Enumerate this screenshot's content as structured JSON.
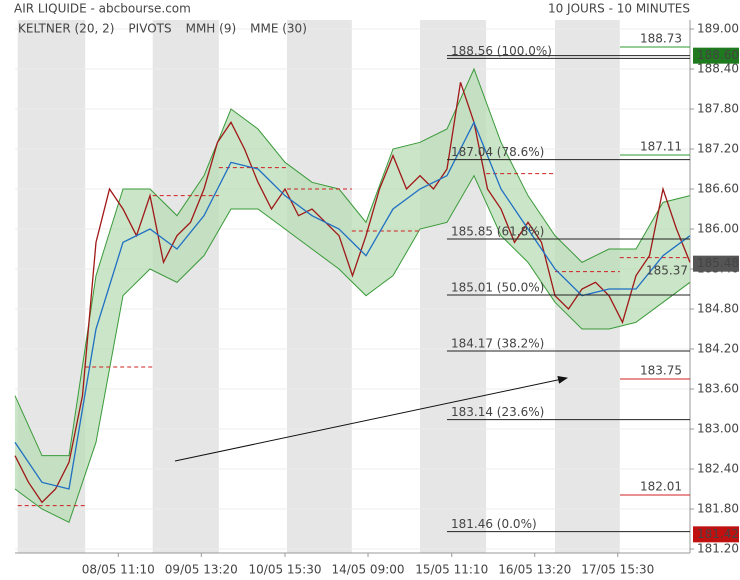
{
  "chart_data": {
    "type": "line",
    "title": "AIR LIQUIDE - abcbourse.com",
    "subtitle": "10 JOURS - 10 MINUTES",
    "legend": [
      "KELTNER (20, 2)",
      "PIVOTS",
      "MMH (9)",
      "MME (30)"
    ],
    "legend_colors": [
      "#3a9a3a",
      "#333333",
      "#a01818",
      "#1f6fc4"
    ],
    "xlim": [
      0,
      100
    ],
    "ylim": [
      181.2,
      189.0
    ],
    "grid": true,
    "yticks": [
      {
        "value": 189.0,
        "label": "189.00"
      },
      {
        "value": 188.4,
        "label": "188.40"
      },
      {
        "value": 187.8,
        "label": "187.80"
      },
      {
        "value": 187.2,
        "label": "187.20"
      },
      {
        "value": 186.6,
        "label": "186.60"
      },
      {
        "value": 186.0,
        "label": "186.00"
      },
      {
        "value": 185.4,
        "label": "185.40"
      },
      {
        "value": 184.8,
        "label": "184.80"
      },
      {
        "value": 184.2,
        "label": "184.20"
      },
      {
        "value": 183.6,
        "label": "183.60"
      },
      {
        "value": 183.0,
        "label": "183.00"
      },
      {
        "value": 182.4,
        "label": "182.40"
      },
      {
        "value": 181.8,
        "label": "181.80"
      },
      {
        "value": 181.2,
        "label": "181.20"
      }
    ],
    "xticks": [
      {
        "value": 15.3,
        "label": "08/05 11:10"
      },
      {
        "value": 27.6,
        "label": "09/05 13:20"
      },
      {
        "value": 40,
        "label": "10/05 15:30"
      },
      {
        "value": 52.3,
        "label": "14/05 09:00"
      },
      {
        "value": 64.7,
        "label": "15/05 11:10"
      },
      {
        "value": 77,
        "label": "16/05 13:20"
      },
      {
        "value": 89.3,
        "label": "17/05 15:30"
      }
    ],
    "shaded_x": [
      [
        0.4,
        10.4
      ],
      [
        20.4,
        30.2
      ],
      [
        40.3,
        49.9
      ],
      [
        60,
        69.8
      ],
      [
        80,
        89.6
      ]
    ],
    "shade_color": "#e6e6e6",
    "keltner": {
      "color": "#3a9a3a",
      "fill": "#b8dcb4",
      "x": [
        0,
        4,
        8,
        12,
        16,
        20,
        24,
        28,
        32,
        36,
        40,
        44,
        48,
        52,
        56,
        60,
        64,
        68,
        72,
        76,
        80,
        84,
        88,
        92,
        96,
        100
      ],
      "upper": [
        183.5,
        182.6,
        182.6,
        185.3,
        186.6,
        186.6,
        186.2,
        186.8,
        187.8,
        187.5,
        187.0,
        186.7,
        186.6,
        186.1,
        187.2,
        187.3,
        187.5,
        188.4,
        187.3,
        186.5,
        185.9,
        185.5,
        185.7,
        185.7,
        186.4,
        186.5
      ],
      "lower": [
        182.1,
        181.8,
        181.6,
        182.8,
        185.0,
        185.4,
        185.2,
        185.6,
        186.3,
        186.3,
        186.0,
        185.7,
        185.4,
        185.0,
        185.3,
        186.0,
        186.1,
        186.8,
        185.9,
        185.5,
        184.9,
        184.5,
        184.5,
        184.6,
        184.9,
        185.2
      ]
    },
    "series": [
      {
        "name": "MMH (9)",
        "color": "#a01818",
        "x": [
          0,
          2,
          4,
          6,
          8,
          10,
          12,
          14,
          16,
          18,
          20,
          22,
          24,
          26,
          28,
          30,
          32,
          34,
          36,
          38,
          40,
          42,
          44,
          46,
          48,
          50,
          52,
          54,
          56,
          58,
          60,
          62,
          64,
          66,
          68,
          70,
          72,
          74,
          76,
          78,
          80,
          82,
          84,
          86,
          88,
          90,
          92,
          94,
          96,
          98,
          100
        ],
        "values": [
          182.6,
          182.2,
          181.9,
          182.1,
          182.5,
          183.5,
          185.8,
          186.6,
          186.3,
          185.9,
          186.5,
          185.5,
          185.9,
          186.1,
          186.6,
          187.3,
          187.6,
          187.2,
          186.7,
          186.3,
          186.6,
          186.2,
          186.3,
          186.1,
          185.9,
          185.3,
          185.9,
          186.6,
          187.1,
          186.6,
          186.8,
          186.6,
          186.9,
          188.2,
          187.6,
          186.6,
          186.3,
          185.8,
          186.1,
          185.8,
          185.0,
          184.8,
          185.1,
          185.2,
          185.0,
          184.6,
          185.3,
          185.6,
          186.6,
          186.0,
          185.5
        ]
      },
      {
        "name": "MME (30)",
        "color": "#1f6fc4",
        "x": [
          0,
          4,
          8,
          12,
          16,
          20,
          24,
          28,
          32,
          36,
          40,
          44,
          48,
          52,
          56,
          60,
          64,
          68,
          72,
          76,
          80,
          84,
          88,
          92,
          96,
          100
        ],
        "values": [
          182.8,
          182.2,
          182.1,
          184.5,
          185.8,
          186.0,
          185.7,
          186.2,
          187.0,
          186.9,
          186.5,
          186.2,
          186.0,
          185.6,
          186.3,
          186.6,
          186.8,
          187.6,
          186.6,
          186.0,
          185.4,
          185.0,
          185.1,
          185.1,
          185.6,
          185.9
        ]
      }
    ],
    "pivots": [
      {
        "x": [
          0.4,
          10.4
        ],
        "value": 181.85
      },
      {
        "x": [
          10.4,
          20.4
        ],
        "value": 183.93
      },
      {
        "x": [
          20.4,
          30.2
        ],
        "value": 186.5
      },
      {
        "x": [
          30.2,
          40.3
        ],
        "value": 186.92
      },
      {
        "x": [
          40.3,
          49.9
        ],
        "value": 186.6
      },
      {
        "x": [
          49.9,
          60
        ],
        "value": 185.97
      },
      {
        "x": [
          69.8,
          80
        ],
        "value": 186.83
      },
      {
        "x": [
          80,
          89.6
        ],
        "value": 185.36
      },
      {
        "x": [
          89.6,
          100
        ],
        "value": 185.57
      }
    ],
    "pivot_color": "#d02020",
    "fibonacci": [
      {
        "value": 188.56,
        "label": "188.56 (100.0%)"
      },
      {
        "value": 187.04,
        "label": "187.04 (78.6%)"
      },
      {
        "value": 185.85,
        "label": "185.85 (61.8%)"
      },
      {
        "value": 185.01,
        "label": "185.01 (50.0%)"
      },
      {
        "value": 184.17,
        "label": "184.17 (38.2%)"
      },
      {
        "value": 183.14,
        "label": "183.14 (23.6%)"
      },
      {
        "value": 181.46,
        "label": "181.46 (0.0%)"
      }
    ],
    "markers": [
      {
        "value": 188.73,
        "color": "#2e9a2e"
      },
      {
        "value": 188.6,
        "label": "188.60",
        "color": "#1f7a1f",
        "boxed": true
      },
      {
        "value": 187.11,
        "color": "#2e9a2e"
      },
      {
        "value": 185.48,
        "color": "#555555",
        "boxed": true
      },
      {
        "value": 183.75,
        "color": "#d02020"
      },
      {
        "value": 182.01,
        "color": "#d02020"
      },
      {
        "value": 181.42,
        "color": "#c01010",
        "boxed": true
      }
    ],
    "inline_labels": [
      {
        "value": 185.37,
        "label": "185.37"
      }
    ]
  }
}
